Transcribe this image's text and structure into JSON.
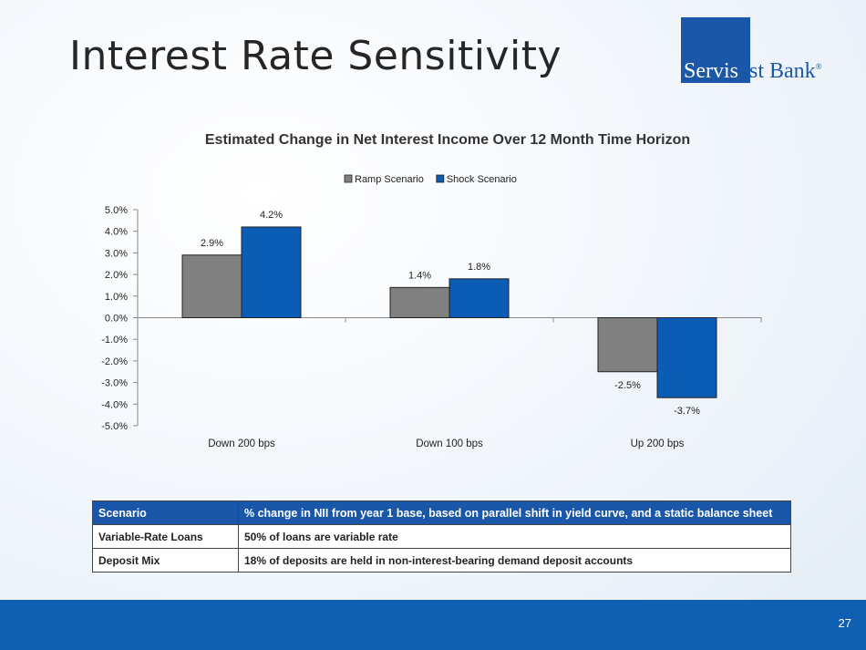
{
  "slide": {
    "title": "Interest Rate Sensitivity",
    "page_number": "27"
  },
  "logo": {
    "part1": "Servis",
    "part2": "1st Bank",
    "mark": "®",
    "box_color": "#1a57a8"
  },
  "chart_data": {
    "type": "bar",
    "title": "Estimated Change in Net Interest Income Over 12 Month Time Horizon",
    "categories": [
      "Down 200 bps",
      "Down 100 bps",
      "Up 200 bps"
    ],
    "series": [
      {
        "name": "Ramp Scenario",
        "values": [
          2.9,
          1.4,
          -2.5
        ],
        "labels": [
          "2.9%",
          "1.4%",
          "-2.5%"
        ],
        "color": "#808080"
      },
      {
        "name": "Shock Scenario",
        "values": [
          4.2,
          1.8,
          -3.7
        ],
        "labels": [
          "4.2%",
          "1.8%",
          "-3.7%"
        ],
        "color": "#0b5cb5"
      }
    ],
    "ylim": [
      -5,
      5
    ],
    "yticks": [
      5,
      4,
      3,
      2,
      1,
      0,
      -1,
      -2,
      -3,
      -4,
      -5
    ],
    "ytick_labels": [
      "5.0%",
      "4.0%",
      "3.0%",
      "2.0%",
      "1.0%",
      "0.0%",
      "-1.0%",
      "-2.0%",
      "-3.0%",
      "-4.0%",
      "-5.0%"
    ],
    "legend_position": "top-center",
    "grid": false
  },
  "table": {
    "header": [
      "Scenario",
      "% change in NII from year 1 base, based on parallel shift in yield curve, and a static balance sheet"
    ],
    "rows": [
      [
        "Variable-Rate Loans",
        "50% of loans are variable rate"
      ],
      [
        "Deposit Mix",
        "18% of deposits are held in non-interest-bearing demand deposit accounts"
      ]
    ]
  },
  "colors": {
    "footer": "#0f5fb3",
    "table_header": "#1a57a8"
  }
}
